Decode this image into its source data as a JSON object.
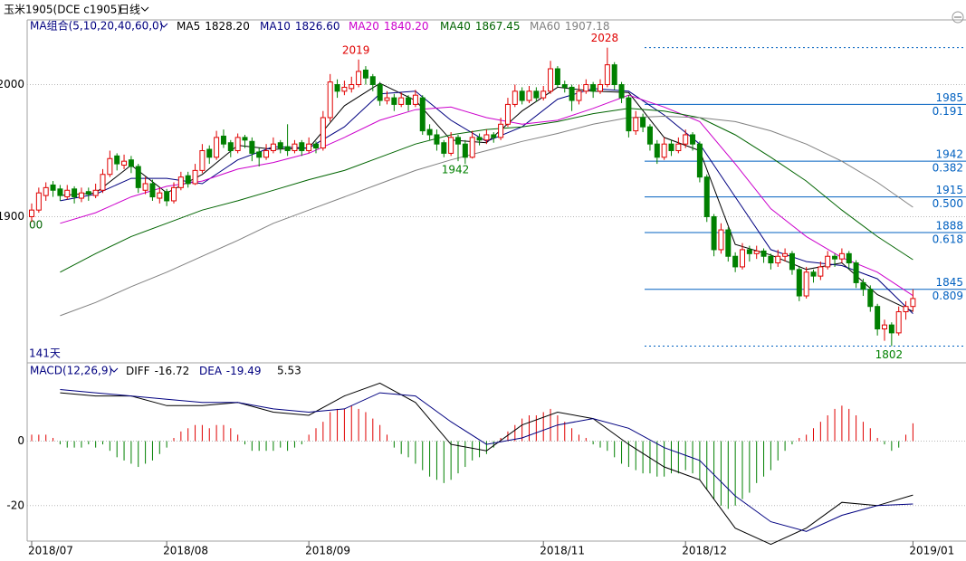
{
  "header": {
    "symbol": "玉米1905(DCE c1905)",
    "period": "日线"
  },
  "chart_data": [
    {
      "type": "candlestick",
      "indicator": "MA组合(5,10,20,40,60,0)",
      "days_label": "141天",
      "side_label": "00",
      "up_color": "#e00000",
      "down_color": "#008000",
      "ylim": [
        1790,
        2049
      ],
      "yticks": [
        1900,
        2000
      ],
      "grid": true,
      "xticks": [
        {
          "value": 0,
          "label": "2018/07"
        },
        {
          "value": 19,
          "label": "2018/08"
        },
        {
          "value": 39,
          "label": "2018/09"
        },
        {
          "value": 72,
          "label": "2018/11"
        },
        {
          "value": 92,
          "label": "2018/12"
        },
        {
          "value": 124,
          "label": "2019/01"
        }
      ],
      "ohlc": [
        [
          1900,
          1910,
          1896,
          1905
        ],
        [
          1905,
          1922,
          1903,
          1918
        ],
        [
          1916,
          1926,
          1912,
          1922
        ],
        [
          1924,
          1927,
          1915,
          1920
        ],
        [
          1921,
          1924,
          1912,
          1916
        ],
        [
          1915,
          1924,
          1913,
          1920
        ],
        [
          1921,
          1923,
          1910,
          1915
        ],
        [
          1914,
          1922,
          1911,
          1918
        ],
        [
          1919,
          1922,
          1912,
          1917
        ],
        [
          1916,
          1925,
          1914,
          1920
        ],
        [
          1920,
          1936,
          1918,
          1932
        ],
        [
          1932,
          1950,
          1930,
          1944
        ],
        [
          1946,
          1948,
          1935,
          1940
        ],
        [
          1939,
          1947,
          1936,
          1942
        ],
        [
          1943,
          1946,
          1933,
          1938
        ],
        [
          1938,
          1940,
          1918,
          1922
        ],
        [
          1920,
          1930,
          1917,
          1925
        ],
        [
          1925,
          1928,
          1912,
          1915
        ],
        [
          1914,
          1922,
          1910,
          1918
        ],
        [
          1919,
          1921,
          1908,
          1912
        ],
        [
          1912,
          1926,
          1910,
          1922
        ],
        [
          1922,
          1934,
          1920,
          1930
        ],
        [
          1931,
          1934,
          1922,
          1925
        ],
        [
          1925,
          1940,
          1924,
          1935
        ],
        [
          1935,
          1955,
          1933,
          1950
        ],
        [
          1951,
          1954,
          1940,
          1945
        ],
        [
          1945,
          1965,
          1943,
          1960
        ],
        [
          1961,
          1966,
          1952,
          1955
        ],
        [
          1956,
          1958,
          1945,
          1950
        ],
        [
          1950,
          1963,
          1948,
          1960
        ],
        [
          1960,
          1962,
          1952,
          1958
        ],
        [
          1957,
          1960,
          1942,
          1948
        ],
        [
          1949,
          1952,
          1938,
          1945
        ],
        [
          1945,
          1955,
          1943,
          1950
        ],
        [
          1950,
          1960,
          1948,
          1955
        ],
        [
          1956,
          1958,
          1948,
          1952
        ],
        [
          1953,
          1970,
          1946,
          1950
        ],
        [
          1950,
          1958,
          1948,
          1955
        ],
        [
          1956,
          1958,
          1946,
          1950
        ],
        [
          1950,
          1960,
          1948,
          1955
        ],
        [
          1955,
          1957,
          1948,
          1952
        ],
        [
          1952,
          1980,
          1950,
          1975
        ],
        [
          1975,
          2008,
          1972,
          2002
        ],
        [
          2000,
          2004,
          1990,
          1995
        ],
        [
          1995,
          2003,
          1992,
          1998
        ],
        [
          1997,
          2006,
          1994,
          2000
        ],
        [
          2000,
          2019,
          1998,
          2010
        ],
        [
          2011,
          2014,
          2000,
          2005
        ],
        [
          2006,
          2008,
          1995,
          2000
        ],
        [
          2000,
          2002,
          1984,
          1988
        ],
        [
          1988,
          1995,
          1985,
          1990
        ],
        [
          1990,
          1993,
          1980,
          1985
        ],
        [
          1985,
          1994,
          1983,
          1990
        ],
        [
          1990,
          1992,
          1980,
          1985
        ],
        [
          1985,
          1996,
          1983,
          1992
        ],
        [
          1990,
          1992,
          1962,
          1965
        ],
        [
          1966,
          1970,
          1958,
          1962
        ],
        [
          1962,
          1966,
          1950,
          1955
        ],
        [
          1956,
          1958,
          1945,
          1948
        ],
        [
          1948,
          1964,
          1946,
          1960
        ],
        [
          1960,
          1962,
          1942,
          1955
        ],
        [
          1955,
          1958,
          1940,
          1945
        ],
        [
          1945,
          1965,
          1944,
          1960
        ],
        [
          1960,
          1963,
          1954,
          1958
        ],
        [
          1958,
          1966,
          1955,
          1962
        ],
        [
          1962,
          1964,
          1956,
          1960
        ],
        [
          1960,
          1975,
          1958,
          1970
        ],
        [
          1970,
          1990,
          1968,
          1985
        ],
        [
          1985,
          2000,
          1983,
          1995
        ],
        [
          1995,
          1998,
          1985,
          1988
        ],
        [
          1988,
          1999,
          1986,
          1995
        ],
        [
          1995,
          1998,
          1987,
          1990
        ],
        [
          1990,
          1999,
          1988,
          1995
        ],
        [
          1995,
          2018,
          1993,
          2012
        ],
        [
          2012,
          2014,
          1998,
          2000
        ],
        [
          2000,
          2003,
          1994,
          1998
        ],
        [
          1998,
          2000,
          1980,
          1988
        ],
        [
          1988,
          2000,
          1985,
          1995
        ],
        [
          1995,
          2004,
          1993,
          2000
        ],
        [
          2000,
          2002,
          1990,
          1995
        ],
        [
          1995,
          2004,
          1993,
          2000
        ],
        [
          2000,
          2028,
          1998,
          2015
        ],
        [
          2015,
          2017,
          1996,
          2000
        ],
        [
          2000,
          2002,
          1986,
          1990
        ],
        [
          1990,
          1992,
          1960,
          1965
        ],
        [
          1965,
          1980,
          1962,
          1975
        ],
        [
          1975,
          1978,
          1964,
          1968
        ],
        [
          1968,
          1970,
          1950,
          1955
        ],
        [
          1955,
          1958,
          1940,
          1945
        ],
        [
          1945,
          1960,
          1943,
          1955
        ],
        [
          1955,
          1958,
          1946,
          1950
        ],
        [
          1950,
          1960,
          1948,
          1955
        ],
        [
          1955,
          1966,
          1952,
          1962
        ],
        [
          1962,
          1964,
          1950,
          1955
        ],
        [
          1955,
          1957,
          1926,
          1930
        ],
        [
          1930,
          1932,
          1896,
          1900
        ],
        [
          1900,
          1902,
          1870,
          1875
        ],
        [
          1875,
          1895,
          1872,
          1890
        ],
        [
          1890,
          1892,
          1866,
          1870
        ],
        [
          1870,
          1873,
          1858,
          1862
        ],
        [
          1862,
          1880,
          1860,
          1875
        ],
        [
          1875,
          1878,
          1866,
          1872
        ],
        [
          1872,
          1878,
          1868,
          1874
        ],
        [
          1874,
          1876,
          1865,
          1870
        ],
        [
          1870,
          1872,
          1860,
          1865
        ],
        [
          1865,
          1875,
          1862,
          1870
        ],
        [
          1870,
          1876,
          1866,
          1872
        ],
        [
          1872,
          1874,
          1856,
          1860
        ],
        [
          1860,
          1862,
          1836,
          1840
        ],
        [
          1840,
          1862,
          1838,
          1858
        ],
        [
          1858,
          1860,
          1850,
          1855
        ],
        [
          1855,
          1866,
          1852,
          1862
        ],
        [
          1862,
          1874,
          1860,
          1870
        ],
        [
          1870,
          1872,
          1862,
          1868
        ],
        [
          1868,
          1876,
          1865,
          1872
        ],
        [
          1872,
          1874,
          1860,
          1865
        ],
        [
          1865,
          1867,
          1846,
          1850
        ],
        [
          1850,
          1853,
          1840,
          1845
        ],
        [
          1845,
          1848,
          1828,
          1832
        ],
        [
          1832,
          1834,
          1810,
          1815
        ],
        [
          1815,
          1822,
          1806,
          1818
        ],
        [
          1818,
          1820,
          1802,
          1812
        ],
        [
          1812,
          1832,
          1810,
          1828
        ],
        [
          1828,
          1836,
          1822,
          1832
        ],
        [
          1832,
          1845,
          1828,
          1838
        ]
      ],
      "x": [
        4,
        9,
        14,
        19,
        24,
        29,
        34,
        39,
        44,
        49,
        54,
        59,
        64,
        69,
        74,
        79,
        84,
        89,
        94,
        99,
        104,
        109,
        114,
        119,
        124
      ],
      "series": [
        {
          "name": "MA5",
          "color": "#000000",
          "legend_value": {
            "value": 1828.2,
            "label": "1828.20"
          },
          "values": [
            1916,
            1918,
            1939,
            1918,
            1932,
            1954,
            1951,
            1952,
            1984,
            2001,
            1988,
            1958,
            1956,
            1980,
            1998,
            1995,
            1994,
            1960,
            1950,
            1879,
            1871,
            1860,
            1865,
            1841,
            1828.2
          ]
        },
        {
          "name": "MA10",
          "color": "#000080",
          "legend_value": {
            "value": 1826.6,
            "label": "1826.60"
          },
          "values": [
            1912,
            1917,
            1929,
            1929,
            1925,
            1943,
            1953,
            1952,
            1968,
            1993,
            1995,
            1973,
            1957,
            1968,
            1989,
            1997,
            1995,
            1977,
            1955,
            1915,
            1875,
            1866,
            1863,
            1853,
            1826.6
          ]
        },
        {
          "name": "MA20",
          "color": "#cc00cc",
          "legend_value": {
            "value": 1840.2,
            "label": "1840.20"
          },
          "values": [
            1895,
            1903,
            1915,
            1923,
            1927,
            1936,
            1941,
            1948,
            1960,
            1973,
            1981,
            1983,
            1975,
            1970,
            1973,
            1982,
            1992,
            1983,
            1972,
            1940,
            1906,
            1885,
            1869,
            1858,
            1840.2
          ]
        },
        {
          "name": "MA40",
          "color": "#006400",
          "legend_value": {
            "value": 1867.45,
            "label": "1867.45"
          },
          "values": [
            1858,
            1872,
            1885,
            1895,
            1905,
            1912,
            1920,
            1928,
            1935,
            1945,
            1955,
            1962,
            1966,
            1968,
            1972,
            1978,
            1982,
            1980,
            1975,
            1962,
            1945,
            1927,
            1905,
            1885,
            1867.45
          ]
        },
        {
          "name": "MA60",
          "color": "#808080",
          "legend_value": {
            "value": 1907.18,
            "label": "1907.18"
          },
          "values": [
            1825,
            1835,
            1847,
            1858,
            1870,
            1882,
            1895,
            1905,
            1915,
            1925,
            1935,
            1943,
            1950,
            1957,
            1963,
            1970,
            1975,
            1976,
            1975,
            1972,
            1965,
            1955,
            1942,
            1926,
            1907.18
          ]
        }
      ],
      "fib_color": "#0060c0",
      "fib_levels": [
        {
          "price": 1985,
          "ratio": 0.191
        },
        {
          "price": 1942,
          "ratio": 0.382
        },
        {
          "price": 1915,
          "ratio": {
            "value": 0.5,
            "label": "0.500"
          }
        },
        {
          "price": 1888,
          "ratio": 0.618
        },
        {
          "price": 1845,
          "ratio": 0.809
        }
      ]
    },
    {
      "type": "macd",
      "indicator": "MACD(12,26,9)",
      "ylim": [
        -31,
        24
      ],
      "yticks": [
        -20,
        0
      ],
      "grid": true,
      "up_color": "#e00000",
      "down_color": "#008000",
      "histogram": [
        2,
        2,
        2,
        1,
        -1,
        -2,
        -2,
        -2,
        -1,
        -2,
        -1,
        -3,
        -5,
        -6,
        -7,
        -8,
        -7,
        -6,
        -4,
        -2,
        1,
        3,
        4,
        5,
        5,
        4,
        5,
        5,
        4,
        2,
        -1,
        -3,
        -3,
        -3,
        -3,
        -2,
        -3,
        -2,
        -1,
        2,
        4,
        6,
        9,
        10,
        10,
        11,
        10,
        9,
        7,
        5,
        2,
        -2,
        -4,
        -5,
        -7,
        -9,
        -11,
        -12,
        -13,
        -12,
        -10,
        -8,
        -6,
        -5,
        -4,
        -2,
        1,
        3,
        5,
        7,
        8,
        8,
        9,
        10,
        8,
        6,
        4,
        2,
        1,
        -1,
        -2,
        -3,
        -5,
        -7,
        -8,
        -9,
        -10,
        -10,
        -11,
        -11,
        -10,
        -10,
        -9,
        -10,
        -12,
        -15,
        -18,
        -20,
        -21,
        -20,
        -18,
        -16,
        -13,
        -11,
        -9,
        -6,
        -3,
        -1,
        1,
        2,
        4,
        6,
        8,
        10,
        11,
        10,
        8,
        6,
        4,
        1,
        -1,
        -3,
        -2,
        2,
        5.53
      ],
      "x": [
        4,
        9,
        14,
        19,
        24,
        29,
        34,
        39,
        44,
        49,
        54,
        59,
        64,
        69,
        74,
        79,
        84,
        89,
        94,
        99,
        104,
        109,
        114,
        119,
        124
      ],
      "series": [
        {
          "name": "DIFF",
          "color": "#000000",
          "legend_value": -16.72,
          "values": [
            15,
            14,
            14,
            11,
            11,
            12,
            9,
            8,
            14,
            18,
            12,
            -1,
            -3,
            5,
            9,
            7,
            -1,
            -8,
            -12,
            -27,
            -32,
            -27,
            -19,
            -20,
            -16.72
          ]
        },
        {
          "name": "DEA",
          "color": "#000080",
          "legend_value": -19.49,
          "values": [
            16,
            15,
            14,
            13,
            12,
            12,
            10,
            9,
            10,
            15,
            14,
            6,
            -1,
            1,
            5,
            7,
            4,
            -2,
            -6,
            -17,
            -25,
            -28,
            -23,
            -20,
            -19.49
          ]
        }
      ]
    }
  ]
}
